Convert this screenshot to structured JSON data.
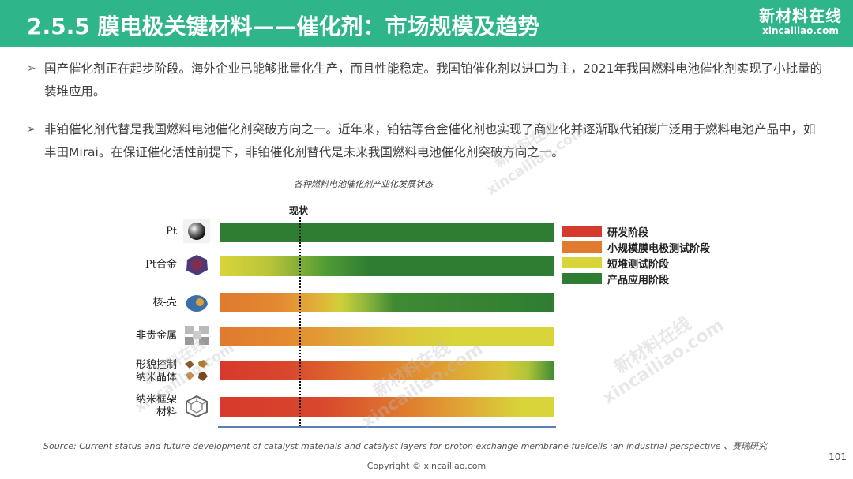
{
  "header": {
    "title": "2.5.5 膜电极关键材料——催化剂：市场规模及趋势",
    "logo_cn": "新材料在线",
    "logo_en": "xincailiao.com"
  },
  "bullets": [
    "国产催化剂正在起步阶段。海外企业已能够批量化生产，而且性能稳定。我国铂催化剂以进口为主，2021年我国燃料电池催化剂实现了小批量的装堆应用。",
    "非铂催化剂代替是我国燃料电池催化剂突破方向之一。近年来，铂钴等合金催化剂也实现了商业化并逐渐取代铂碳广泛用于燃料电池产品中，如丰田Mirai。在保证催化活性前提下，非铂催化剂替代是未来我国燃料电池催化剂突破方向之一。"
  ],
  "bullet_mark": "➢",
  "figure": {
    "title": "各种燃料电池催化剂产业化发展状态",
    "now_label": "现状",
    "rows": [
      {
        "label": "Pt",
        "icon": "sphere-icon",
        "stages": "全部产品应用阶段"
      },
      {
        "label": "Pt合金",
        "icon": "alloy-particle-icon",
        "stages": "短堆测试 → 产品应用"
      },
      {
        "label": "核-壳",
        "icon": "core-shell-icon",
        "stages": "小规模膜电极测试 → 短堆测试 → 产品应用"
      },
      {
        "label": "非贵金属",
        "icon": "framework-molecule-icon",
        "stages": "小规模膜电极测试 → 短堆测试"
      },
      {
        "label": "形貌控制\n纳米晶体",
        "icon": "nanocrystal-icon",
        "stages": "研发 → 小规模膜电极测试 → 短堆测试 → 产品应用"
      },
      {
        "label": "纳米框架\n材料",
        "icon": "nanoframe-icon",
        "stages": "研发 → 小规模膜电极测试 → 短堆测试"
      }
    ],
    "legend": [
      {
        "label": "研发阶段",
        "color": "#d63a2c"
      },
      {
        "label": "小规模膜电极测试阶段",
        "color": "#e07a2e"
      },
      {
        "label": "短堆测试阶段",
        "color": "#d8d43a"
      },
      {
        "label": "产品应用阶段",
        "color": "#2e7d32"
      }
    ]
  },
  "watermarks": {
    "cn": "新材料在线",
    "en": "xincailiao.com"
  },
  "source": "Source:  Current status and future development of catalyst materials and catalyst layers for proton exchange membrane fuelcells :an industrial perspective 、赛瑞研究",
  "copyright": "Copyright © xincailiao.com",
  "page_number": "101"
}
